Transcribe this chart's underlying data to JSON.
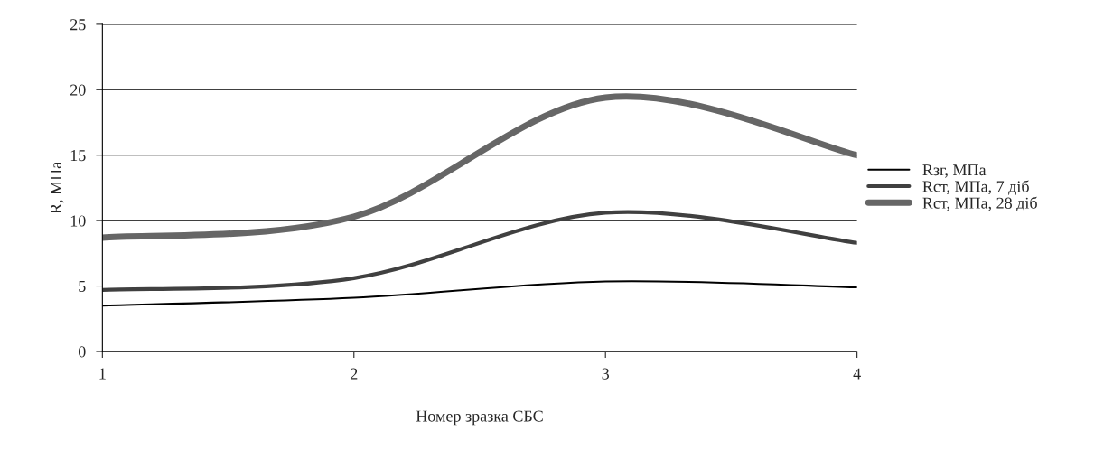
{
  "chart_data": {
    "type": "line",
    "xlabel": "Номер зразка СБС",
    "ylabel": "R, МПа",
    "x": [
      1,
      2,
      3,
      4
    ],
    "series": [
      {
        "name": "Rзг, МПа",
        "color": "#000000",
        "values": [
          3.5,
          4.1,
          5.35,
          4.9
        ]
      },
      {
        "name": "Rст, МПа, 7 діб",
        "color": "#404040",
        "values": [
          4.7,
          5.6,
          10.6,
          8.3
        ]
      },
      {
        "name": "Rст, МПа, 28 діб",
        "color": "#666666",
        "values": [
          8.7,
          10.3,
          19.4,
          15.0
        ]
      }
    ],
    "xlim": [
      1,
      4
    ],
    "xticks": [
      1,
      2,
      3,
      4
    ],
    "ylim": [
      0,
      25
    ],
    "yticks": [
      0,
      5,
      10,
      15,
      20,
      25
    ],
    "grid": "y",
    "legend": "right",
    "marker": "none",
    "line_style": "solid"
  }
}
